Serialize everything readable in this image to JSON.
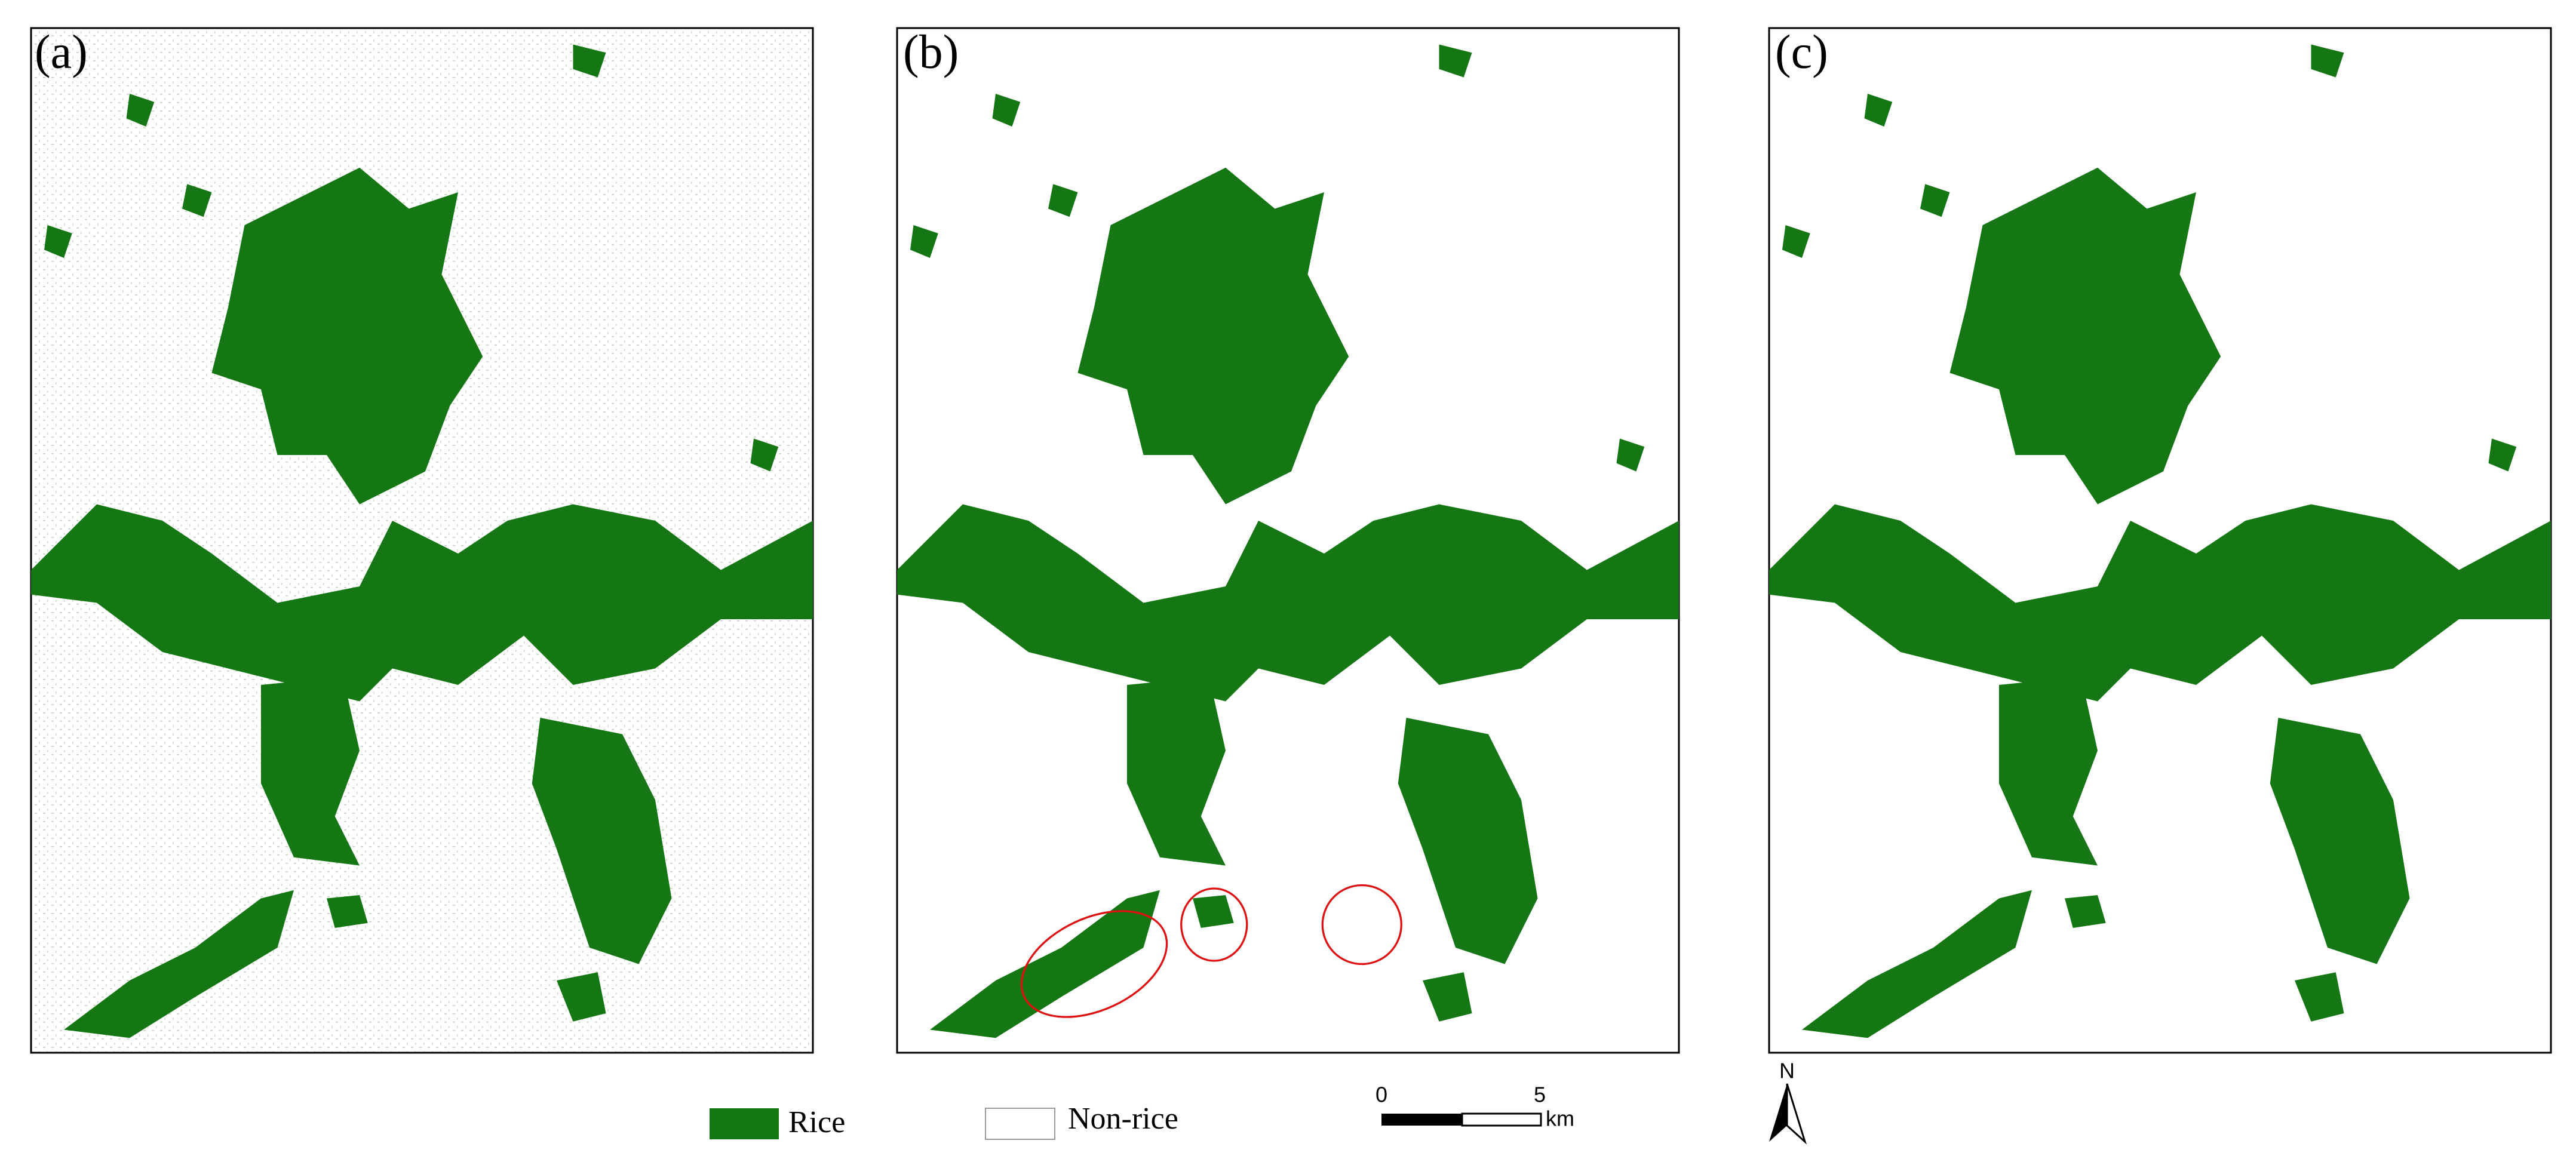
{
  "panels": [
    {
      "label": "(a)"
    },
    {
      "label": "(b)"
    },
    {
      "label": "(c)"
    }
  ],
  "legend": {
    "items": [
      "Rice",
      "Non-rice"
    ]
  },
  "scale_bar": {
    "ticks": [
      "0",
      "5"
    ],
    "unit": "km"
  },
  "north_arrow": {
    "label": "N"
  }
}
